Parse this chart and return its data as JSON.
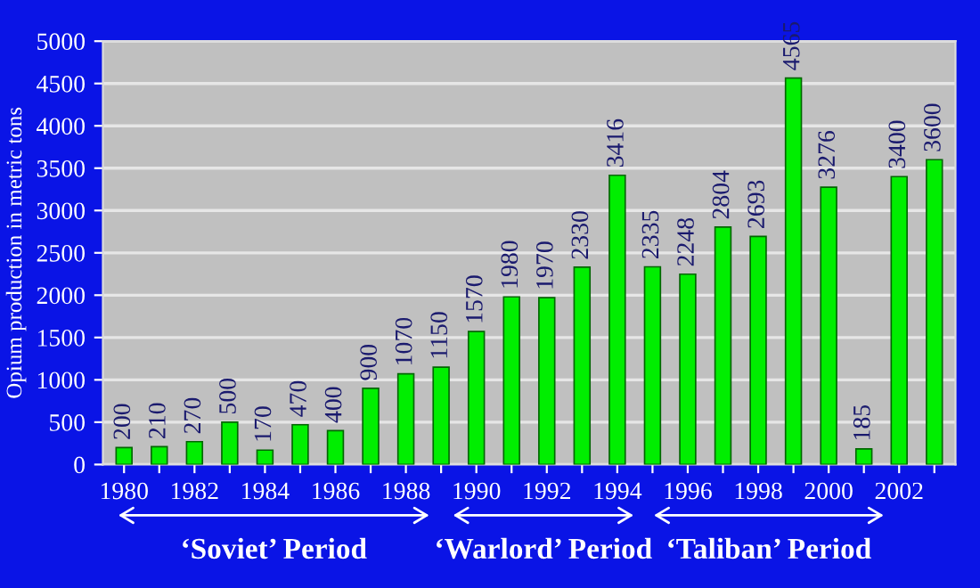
{
  "chart_data": {
    "type": "bar",
    "ylabel": "Opium production in metric tons",
    "categories": [
      "1980",
      null,
      "1982",
      null,
      "1984",
      null,
      "1986",
      null,
      "1988",
      null,
      "1990",
      null,
      "1992",
      null,
      "1994",
      null,
      "1996",
      null,
      "1998",
      null,
      "2000",
      null,
      "2002",
      null
    ],
    "values": [
      200,
      210,
      270,
      500,
      170,
      470,
      400,
      900,
      1070,
      1150,
      1570,
      1980,
      1970,
      2330,
      3416,
      2335,
      2248,
      2804,
      2693,
      4565,
      3276,
      185,
      3400,
      3600
    ],
    "color": "#00ee00",
    "data_labels": true,
    "ylim": [
      0,
      5000
    ],
    "yticks": [
      0,
      500,
      1000,
      1500,
      2000,
      2500,
      3000,
      3500,
      4000,
      4500,
      5000
    ],
    "grid": "y",
    "annotations": [
      "‘Soviet’ Period",
      "‘Warlord’ Period",
      "‘Taliban’ Period"
    ]
  }
}
